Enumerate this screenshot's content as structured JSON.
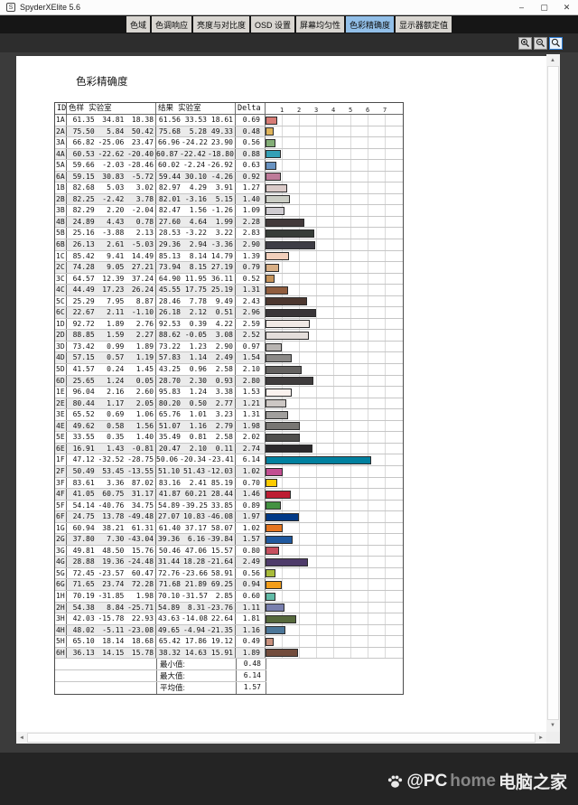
{
  "window": {
    "title": "SpyderXElite 5.6",
    "controls": [
      {
        "name": "minimize",
        "glyph": "–"
      },
      {
        "name": "maximize",
        "glyph": "▢"
      },
      {
        "name": "close",
        "glyph": "✕"
      }
    ]
  },
  "tabs": [
    {
      "label": "色域",
      "active": false
    },
    {
      "label": "色调响应",
      "active": false
    },
    {
      "label": "亮度与对比度",
      "active": false
    },
    {
      "label": "OSD 设置",
      "active": false
    },
    {
      "label": "屏幕均匀性",
      "active": false
    },
    {
      "label": "色彩精确度",
      "active": true
    },
    {
      "label": "显示器额定值",
      "active": false
    }
  ],
  "toolbar": {
    "buttons": [
      {
        "name": "zoom-in",
        "icon": "magnifier-plus-icon",
        "selected": false
      },
      {
        "name": "zoom-out",
        "icon": "magnifier-minus-icon",
        "selected": false
      },
      {
        "name": "zoom-fit",
        "icon": "magnifier-icon",
        "selected": true
      }
    ]
  },
  "report": {
    "title": "色彩精确度"
  },
  "table": {
    "headers": {
      "id": "ID",
      "sample": "色样 实验室",
      "result": "结果 实验室",
      "delta": "Delta E"
    },
    "axis_ticks": [
      1,
      2,
      3,
      4,
      5,
      6,
      7
    ],
    "rows": [
      {
        "id": "1A",
        "sample": [
          "61.35",
          "34.81",
          "18.38"
        ],
        "result": [
          "61.56",
          "33.53",
          "18.61"
        ],
        "delta": "0.69"
      },
      {
        "id": "2A",
        "sample": [
          "75.50",
          "5.84",
          "50.42"
        ],
        "result": [
          "75.68",
          "5.28",
          "49.33"
        ],
        "delta": "0.48"
      },
      {
        "id": "3A",
        "sample": [
          "66.82",
          "-25.06",
          "23.47"
        ],
        "result": [
          "66.96",
          "-24.22",
          "23.90"
        ],
        "delta": "0.56"
      },
      {
        "id": "4A",
        "sample": [
          "60.53",
          "-22.62",
          "-20.40"
        ],
        "result": [
          "60.87",
          "-22.42",
          "-18.80"
        ],
        "delta": "0.88"
      },
      {
        "id": "5A",
        "sample": [
          "59.66",
          "-2.03",
          "-28.46"
        ],
        "result": [
          "60.02",
          "-2.24",
          "-26.92"
        ],
        "delta": "0.63"
      },
      {
        "id": "6A",
        "sample": [
          "59.15",
          "30.83",
          "-5.72"
        ],
        "result": [
          "59.44",
          "30.10",
          "-4.26"
        ],
        "delta": "0.92"
      },
      {
        "id": "1B",
        "sample": [
          "82.68",
          "5.03",
          "3.02"
        ],
        "result": [
          "82.97",
          "4.29",
          "3.91"
        ],
        "delta": "1.27"
      },
      {
        "id": "2B",
        "sample": [
          "82.25",
          "-2.42",
          "3.78"
        ],
        "result": [
          "82.01",
          "-3.16",
          "5.15"
        ],
        "delta": "1.40"
      },
      {
        "id": "3B",
        "sample": [
          "82.29",
          "2.20",
          "-2.04"
        ],
        "result": [
          "82.47",
          "1.56",
          "-1.26"
        ],
        "delta": "1.09"
      },
      {
        "id": "4B",
        "sample": [
          "24.89",
          "4.43",
          "0.78"
        ],
        "result": [
          "27.60",
          "4.64",
          "1.99"
        ],
        "delta": "2.28"
      },
      {
        "id": "5B",
        "sample": [
          "25.16",
          "-3.88",
          "2.13"
        ],
        "result": [
          "28.53",
          "-3.22",
          "3.22"
        ],
        "delta": "2.83"
      },
      {
        "id": "6B",
        "sample": [
          "26.13",
          "2.61",
          "-5.03"
        ],
        "result": [
          "29.36",
          "2.94",
          "-3.36"
        ],
        "delta": "2.90"
      },
      {
        "id": "1C",
        "sample": [
          "85.42",
          "9.41",
          "14.49"
        ],
        "result": [
          "85.13",
          "8.14",
          "14.79"
        ],
        "delta": "1.39"
      },
      {
        "id": "2C",
        "sample": [
          "74.28",
          "9.05",
          "27.21"
        ],
        "result": [
          "73.94",
          "8.15",
          "27.19"
        ],
        "delta": "0.79"
      },
      {
        "id": "3C",
        "sample": [
          "64.57",
          "12.39",
          "37.24"
        ],
        "result": [
          "64.90",
          "11.95",
          "36.11"
        ],
        "delta": "0.52"
      },
      {
        "id": "4C",
        "sample": [
          "44.49",
          "17.23",
          "26.24"
        ],
        "result": [
          "45.55",
          "17.75",
          "25.19"
        ],
        "delta": "1.31"
      },
      {
        "id": "5C",
        "sample": [
          "25.29",
          "7.95",
          "8.87"
        ],
        "result": [
          "28.46",
          "7.78",
          "9.49"
        ],
        "delta": "2.43"
      },
      {
        "id": "6C",
        "sample": [
          "22.67",
          "2.11",
          "-1.10"
        ],
        "result": [
          "26.18",
          "2.12",
          "0.51"
        ],
        "delta": "2.96"
      },
      {
        "id": "1D",
        "sample": [
          "92.72",
          "1.89",
          "2.76"
        ],
        "result": [
          "92.53",
          "0.39",
          "4.22"
        ],
        "delta": "2.59"
      },
      {
        "id": "2D",
        "sample": [
          "88.85",
          "1.59",
          "2.27"
        ],
        "result": [
          "88.62",
          "-0.05",
          "3.08"
        ],
        "delta": "2.52"
      },
      {
        "id": "3D",
        "sample": [
          "73.42",
          "0.99",
          "1.89"
        ],
        "result": [
          "73.22",
          "1.23",
          "2.90"
        ],
        "delta": "0.97"
      },
      {
        "id": "4D",
        "sample": [
          "57.15",
          "0.57",
          "1.19"
        ],
        "result": [
          "57.83",
          "1.14",
          "2.49"
        ],
        "delta": "1.54"
      },
      {
        "id": "5D",
        "sample": [
          "41.57",
          "0.24",
          "1.45"
        ],
        "result": [
          "43.25",
          "0.96",
          "2.58"
        ],
        "delta": "2.10"
      },
      {
        "id": "6D",
        "sample": [
          "25.65",
          "1.24",
          "0.05"
        ],
        "result": [
          "28.70",
          "2.30",
          "0.93"
        ],
        "delta": "2.80"
      },
      {
        "id": "1E",
        "sample": [
          "96.04",
          "2.16",
          "2.60"
        ],
        "result": [
          "95.83",
          "1.24",
          "3.38"
        ],
        "delta": "1.53"
      },
      {
        "id": "2E",
        "sample": [
          "80.44",
          "1.17",
          "2.05"
        ],
        "result": [
          "80.20",
          "0.50",
          "2.77"
        ],
        "delta": "1.21"
      },
      {
        "id": "3E",
        "sample": [
          "65.52",
          "0.69",
          "1.06"
        ],
        "result": [
          "65.76",
          "1.01",
          "3.23"
        ],
        "delta": "1.31"
      },
      {
        "id": "4E",
        "sample": [
          "49.62",
          "0.58",
          "1.56"
        ],
        "result": [
          "51.07",
          "1.16",
          "2.79"
        ],
        "delta": "1.98"
      },
      {
        "id": "5E",
        "sample": [
          "33.55",
          "0.35",
          "1.40"
        ],
        "result": [
          "35.49",
          "0.81",
          "2.58"
        ],
        "delta": "2.02"
      },
      {
        "id": "6E",
        "sample": [
          "16.91",
          "1.43",
          "-0.81"
        ],
        "result": [
          "20.47",
          "2.10",
          "0.11"
        ],
        "delta": "2.74"
      },
      {
        "id": "1F",
        "sample": [
          "47.12",
          "-32.52",
          "-28.75"
        ],
        "result": [
          "50.06",
          "-20.34",
          "-23.41"
        ],
        "delta": "6.14"
      },
      {
        "id": "2F",
        "sample": [
          "50.49",
          "53.45",
          "-13.55"
        ],
        "result": [
          "51.10",
          "51.43",
          "-12.03"
        ],
        "delta": "1.02"
      },
      {
        "id": "3F",
        "sample": [
          "83.61",
          "3.36",
          "87.02"
        ],
        "result": [
          "83.16",
          "2.41",
          "85.19"
        ],
        "delta": "0.70"
      },
      {
        "id": "4F",
        "sample": [
          "41.05",
          "60.75",
          "31.17"
        ],
        "result": [
          "41.87",
          "60.21",
          "28.44"
        ],
        "delta": "1.46"
      },
      {
        "id": "5F",
        "sample": [
          "54.14",
          "-40.76",
          "34.75"
        ],
        "result": [
          "54.89",
          "-39.25",
          "33.85"
        ],
        "delta": "0.89"
      },
      {
        "id": "6F",
        "sample": [
          "24.75",
          "13.78",
          "-49.48"
        ],
        "result": [
          "27.07",
          "10.83",
          "-46.08"
        ],
        "delta": "1.97"
      },
      {
        "id": "1G",
        "sample": [
          "60.94",
          "38.21",
          "61.31"
        ],
        "result": [
          "61.40",
          "37.17",
          "58.07"
        ],
        "delta": "1.02"
      },
      {
        "id": "2G",
        "sample": [
          "37.80",
          "7.30",
          "-43.04"
        ],
        "result": [
          "39.36",
          "6.16",
          "-39.84"
        ],
        "delta": "1.57"
      },
      {
        "id": "3G",
        "sample": [
          "49.81",
          "48.50",
          "15.76"
        ],
        "result": [
          "50.46",
          "47.06",
          "15.57"
        ],
        "delta": "0.80"
      },
      {
        "id": "4G",
        "sample": [
          "28.88",
          "19.36",
          "-24.48"
        ],
        "result": [
          "31.44",
          "18.28",
          "-21.64"
        ],
        "delta": "2.49"
      },
      {
        "id": "5G",
        "sample": [
          "72.45",
          "-23.57",
          "60.47"
        ],
        "result": [
          "72.76",
          "-23.66",
          "58.91"
        ],
        "delta": "0.56"
      },
      {
        "id": "6G",
        "sample": [
          "71.65",
          "23.74",
          "72.28"
        ],
        "result": [
          "71.68",
          "21.89",
          "69.25"
        ],
        "delta": "0.94"
      },
      {
        "id": "1H",
        "sample": [
          "70.19",
          "-31.85",
          "1.98"
        ],
        "result": [
          "70.10",
          "-31.57",
          "2.85"
        ],
        "delta": "0.60"
      },
      {
        "id": "2H",
        "sample": [
          "54.38",
          "8.84",
          "-25.71"
        ],
        "result": [
          "54.89",
          "8.31",
          "-23.76"
        ],
        "delta": "1.11"
      },
      {
        "id": "3H",
        "sample": [
          "42.03",
          "-15.78",
          "22.93"
        ],
        "result": [
          "43.63",
          "-14.08",
          "22.64"
        ],
        "delta": "1.81"
      },
      {
        "id": "4H",
        "sample": [
          "48.02",
          "-5.11",
          "-23.08"
        ],
        "result": [
          "49.65",
          "-4.94",
          "-21.35"
        ],
        "delta": "1.16"
      },
      {
        "id": "5H",
        "sample": [
          "65.10",
          "18.14",
          "18.68"
        ],
        "result": [
          "65.42",
          "17.86",
          "19.12"
        ],
        "delta": "0.49"
      },
      {
        "id": "6H",
        "sample": [
          "36.13",
          "14.15",
          "15.78"
        ],
        "result": [
          "38.32",
          "14.63",
          "15.91"
        ],
        "delta": "1.89"
      }
    ],
    "summary": [
      {
        "label": "最小值:",
        "value": "0.48"
      },
      {
        "label": "最大值:",
        "value": "6.14"
      },
      {
        "label": "平均值:",
        "value": "1.57"
      }
    ]
  },
  "watermark": {
    "prefix": "@PC",
    "mid": "home",
    "suffix": "电脑之家"
  }
}
